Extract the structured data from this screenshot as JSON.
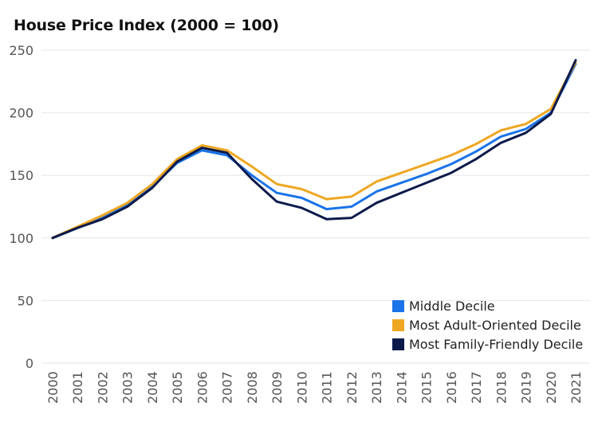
{
  "chart_data": {
    "type": "line",
    "title": "House Price Index (2000 = 100)",
    "xlabel": "",
    "ylabel": "",
    "ylim": [
      0,
      250
    ],
    "yticks": [
      "0",
      "50",
      "100",
      "150",
      "200",
      "250"
    ],
    "categories": [
      "2000",
      "2001",
      "2002",
      "2003",
      "2004",
      "2005",
      "2006",
      "2007",
      "2008",
      "2009",
      "2010",
      "2011",
      "2012",
      "2013",
      "2014",
      "2015",
      "2016",
      "2017",
      "2018",
      "2019",
      "2020",
      "2021"
    ],
    "grid": true,
    "legend_position": "bottom-right",
    "series": [
      {
        "name": "Middle Decile",
        "color": "#1a73e8",
        "values": [
          100,
          108,
          116,
          126,
          141,
          160,
          170,
          166,
          150,
          136,
          132,
          123,
          125,
          137,
          144,
          151,
          159,
          169,
          181,
          187,
          200,
          239
        ]
      },
      {
        "name": "Most Adult-Oriented Decile",
        "color": "#eea722",
        "values": [
          100,
          109,
          118,
          128,
          143,
          163,
          174,
          170,
          157,
          143,
          139,
          131,
          133,
          145,
          152,
          159,
          166,
          175,
          186,
          191,
          203,
          240
        ]
      },
      {
        "name": "Most Family-Friendly Decile",
        "color": "#0c1a4b",
        "values": [
          100,
          108,
          115,
          125,
          140,
          161,
          172,
          168,
          147,
          129,
          124,
          115,
          116,
          128,
          136,
          144,
          152,
          163,
          176,
          184,
          199,
          242
        ]
      }
    ]
  }
}
